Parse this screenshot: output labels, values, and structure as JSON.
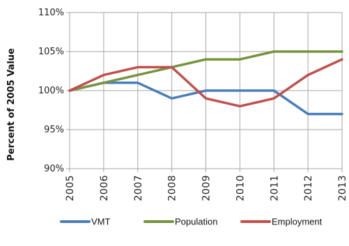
{
  "chart_data": {
    "type": "line",
    "title": "",
    "xlabel": "",
    "ylabel": "Percent of 2005 Value",
    "x": [
      "2005",
      "2006",
      "2007",
      "2008",
      "2009",
      "2010",
      "2011",
      "2012",
      "2013"
    ],
    "y_ticks": [
      "90%",
      "95%",
      "100%",
      "105%",
      "110%"
    ],
    "ylim": [
      90,
      110
    ],
    "grid": true,
    "legend_position": "bottom",
    "series": [
      {
        "name": "VMT",
        "color": "#4a7ebb",
        "values": [
          100,
          101,
          101,
          99,
          100,
          100,
          100,
          97,
          97
        ]
      },
      {
        "name": "Population",
        "color": "#77933c",
        "values": [
          100,
          101,
          102,
          103,
          104,
          104,
          105,
          105,
          105
        ]
      },
      {
        "name": "Employment",
        "color": "#c0504d",
        "values": [
          100,
          102,
          103,
          103,
          99,
          98,
          99,
          102,
          104
        ]
      }
    ]
  }
}
